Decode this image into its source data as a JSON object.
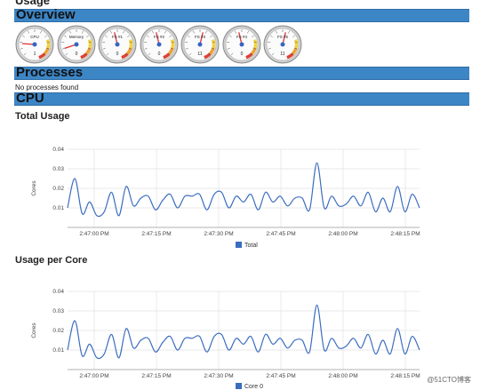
{
  "page": {
    "title_fragment": "Usage"
  },
  "overview": {
    "heading": "Overview",
    "gauges": [
      {
        "label": "CPU",
        "value": "1",
        "needle": 0.18
      },
      {
        "label": "Memory",
        "value": "0",
        "needle": 0.1
      },
      {
        "label": "FS #1",
        "value": "0",
        "needle": 0.45
      },
      {
        "label": "FS #2",
        "value": "0",
        "needle": 0.45
      },
      {
        "label": "FS #3",
        "value": "11",
        "needle": 0.55
      },
      {
        "label": "FS #4",
        "value": "0",
        "needle": 0.45
      },
      {
        "label": "FS #5",
        "value": "11",
        "needle": 0.55
      }
    ]
  },
  "processes": {
    "heading": "Processes",
    "empty_message": "No processes found"
  },
  "cpu": {
    "heading": "CPU"
  },
  "chart_data": [
    {
      "type": "line",
      "title": "Total Usage",
      "ylabel": "Cores",
      "ylim": [
        0.0,
        0.04
      ],
      "yticks": [
        "0.01",
        "0.02",
        "0.03",
        "0.04"
      ],
      "xticks": [
        "2:47:00 PM",
        "2:47:15 PM",
        "2:47:30 PM",
        "2:47:45 PM",
        "2:48:00 PM",
        "2:48:15 PM"
      ],
      "legend": "bottom",
      "grid": true,
      "series": [
        {
          "name": "Total",
          "color": "#3b6dbf",
          "values": [
            0.01,
            0.025,
            0.007,
            0.013,
            0.006,
            0.008,
            0.018,
            0.006,
            0.021,
            0.011,
            0.015,
            0.016,
            0.009,
            0.014,
            0.017,
            0.01,
            0.016,
            0.016,
            0.017,
            0.009,
            0.017,
            0.018,
            0.01,
            0.016,
            0.013,
            0.017,
            0.009,
            0.018,
            0.013,
            0.016,
            0.011,
            0.015,
            0.015,
            0.009,
            0.033,
            0.01,
            0.016,
            0.011,
            0.012,
            0.016,
            0.011,
            0.018,
            0.008,
            0.015,
            0.008,
            0.021,
            0.008,
            0.017,
            0.01
          ]
        }
      ]
    },
    {
      "type": "line",
      "title": "Usage per Core",
      "ylabel": "Cores",
      "ylim": [
        0.0,
        0.04
      ],
      "yticks": [
        "0.01",
        "0.02",
        "0.03",
        "0.04"
      ],
      "xticks": [
        "2:47:00 PM",
        "2:47:15 PM",
        "2:47:30 PM",
        "2:47:45 PM",
        "2:48:00 PM",
        "2:48:15 PM"
      ],
      "legend": "bottom",
      "grid": true,
      "series": [
        {
          "name": "Core 0",
          "color": "#3b6dbf",
          "values": [
            0.01,
            0.025,
            0.007,
            0.013,
            0.006,
            0.008,
            0.018,
            0.006,
            0.021,
            0.011,
            0.015,
            0.016,
            0.009,
            0.014,
            0.017,
            0.01,
            0.016,
            0.016,
            0.017,
            0.009,
            0.017,
            0.018,
            0.01,
            0.016,
            0.013,
            0.017,
            0.009,
            0.018,
            0.013,
            0.016,
            0.011,
            0.015,
            0.015,
            0.009,
            0.033,
            0.01,
            0.016,
            0.011,
            0.012,
            0.016,
            0.011,
            0.018,
            0.008,
            0.015,
            0.008,
            0.021,
            0.008,
            0.017,
            0.01
          ]
        }
      ]
    }
  ],
  "watermark": "@51CTO博客"
}
